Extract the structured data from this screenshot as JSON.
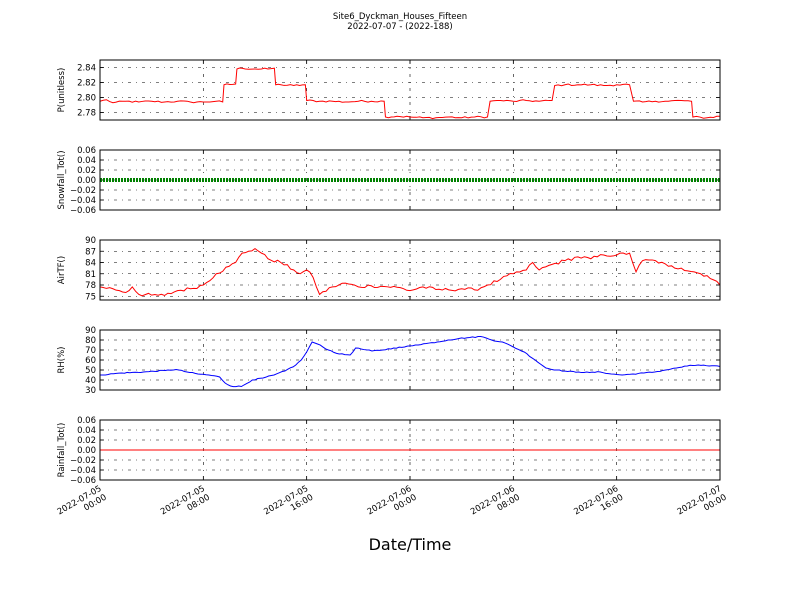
{
  "title": {
    "line1": "Site6_Dyckman_Houses_Fifteen",
    "line2": "2022-07-07 - (2022-188)"
  },
  "chart_data": {
    "type": "line",
    "xlabel": "Date/Time",
    "x_range": [
      "2022-07-05 00:00",
      "2022-07-07 00:00"
    ],
    "x_ticks": [
      {
        "line1": "2022-07-05",
        "line2": "00:00",
        "hours": 0
      },
      {
        "line1": "2022-07-05",
        "line2": "08:00",
        "hours": 8
      },
      {
        "line1": "2022-07-05",
        "line2": "16:00",
        "hours": 16
      },
      {
        "line1": "2022-07-06",
        "line2": "00:00",
        "hours": 24
      },
      {
        "line1": "2022-07-06",
        "line2": "08:00",
        "hours": 32
      },
      {
        "line1": "2022-07-06",
        "line2": "16:00",
        "hours": 40
      },
      {
        "line1": "2022-07-07",
        "line2": "00:00",
        "hours": 48
      }
    ],
    "grid": true,
    "panels": [
      {
        "ylabel": "P(unitless)",
        "color": "#ff0000",
        "ylim": [
          2.77,
          2.85
        ],
        "yticks": [
          "2.78",
          "2.80",
          "2.82",
          "2.84"
        ],
        "ytick_values": [
          2.78,
          2.8,
          2.82,
          2.84
        ],
        "noise": 0.0012,
        "series": [
          [
            0,
            2.795
          ],
          [
            0.5,
            2.797
          ],
          [
            1,
            2.793
          ],
          [
            2,
            2.795
          ],
          [
            3,
            2.794
          ],
          [
            4,
            2.795
          ],
          [
            5,
            2.794
          ],
          [
            6,
            2.795
          ],
          [
            7,
            2.794
          ],
          [
            8,
            2.794
          ],
          [
            9,
            2.795
          ],
          [
            9.5,
            2.794
          ],
          [
            9.6,
            2.817
          ],
          [
            10.5,
            2.818
          ],
          [
            10.6,
            2.838
          ],
          [
            11,
            2.839
          ],
          [
            12,
            2.838
          ],
          [
            13,
            2.838
          ],
          [
            13.5,
            2.839
          ],
          [
            13.6,
            2.817
          ],
          [
            14,
            2.817
          ],
          [
            15,
            2.816
          ],
          [
            15.9,
            2.817
          ],
          [
            16,
            2.796
          ],
          [
            17,
            2.795
          ],
          [
            18,
            2.795
          ],
          [
            19,
            2.794
          ],
          [
            20,
            2.795
          ],
          [
            21,
            2.795
          ],
          [
            22,
            2.795
          ],
          [
            22.1,
            2.774
          ],
          [
            23,
            2.775
          ],
          [
            24,
            2.774
          ],
          [
            25,
            2.773
          ],
          [
            26,
            2.773
          ],
          [
            27,
            2.774
          ],
          [
            28,
            2.773
          ],
          [
            29,
            2.774
          ],
          [
            30,
            2.774
          ],
          [
            30.2,
            2.795
          ],
          [
            31,
            2.796
          ],
          [
            32,
            2.795
          ],
          [
            33,
            2.796
          ],
          [
            34,
            2.795
          ],
          [
            35,
            2.796
          ],
          [
            35.2,
            2.816
          ],
          [
            36,
            2.817
          ],
          [
            37,
            2.817
          ],
          [
            38,
            2.817
          ],
          [
            39,
            2.816
          ],
          [
            40,
            2.817
          ],
          [
            41,
            2.817
          ],
          [
            41.3,
            2.795
          ],
          [
            42,
            2.794
          ],
          [
            43,
            2.795
          ],
          [
            44,
            2.795
          ],
          [
            45,
            2.796
          ],
          [
            45.8,
            2.795
          ],
          [
            45.9,
            2.774
          ],
          [
            47,
            2.773
          ],
          [
            48,
            2.775
          ]
        ]
      },
      {
        "ylabel": "Snowfall_Tot()",
        "color": "#008000",
        "style": "thick-dotted",
        "ylim": [
          -0.06,
          0.06
        ],
        "yticks": [
          "−0.06",
          "−0.04",
          "−0.02",
          "0.00",
          "0.02",
          "0.04",
          "0.06"
        ],
        "ytick_values": [
          -0.06,
          -0.04,
          -0.02,
          0.0,
          0.02,
          0.04,
          0.06
        ],
        "noise": 0,
        "series": [
          [
            0,
            0
          ],
          [
            48,
            0
          ]
        ]
      },
      {
        "ylabel": "AirTF()",
        "color": "#ff0000",
        "ylim": [
          74,
          90
        ],
        "yticks": [
          "75",
          "78",
          "81",
          "84",
          "87",
          "90"
        ],
        "ytick_values": [
          75,
          78,
          81,
          84,
          87,
          90
        ],
        "noise": 0.45,
        "series": [
          [
            0,
            77.5
          ],
          [
            1,
            77
          ],
          [
            1.5,
            76.5
          ],
          [
            2,
            76
          ],
          [
            2.5,
            77.5
          ],
          [
            3,
            75.5
          ],
          [
            4,
            75.3
          ],
          [
            5,
            75.2
          ],
          [
            6,
            76.5
          ],
          [
            7,
            77
          ],
          [
            8,
            78
          ],
          [
            9,
            81
          ],
          [
            10,
            83
          ],
          [
            10.5,
            84
          ],
          [
            11,
            86.5
          ],
          [
            11.5,
            87
          ],
          [
            12,
            87.7
          ],
          [
            12.5,
            86.5
          ],
          [
            13,
            85
          ],
          [
            14,
            84
          ],
          [
            15,
            82
          ],
          [
            15.5,
            81
          ],
          [
            16,
            82
          ],
          [
            16.5,
            80
          ],
          [
            17,
            75.5
          ],
          [
            18,
            77.5
          ],
          [
            19,
            78.5
          ],
          [
            20,
            77.5
          ],
          [
            21,
            77.8
          ],
          [
            22,
            77.6
          ],
          [
            23,
            77.4
          ],
          [
            24,
            76.5
          ],
          [
            25,
            77.5
          ],
          [
            26,
            76.8
          ],
          [
            27,
            76.7
          ],
          [
            28,
            77
          ],
          [
            29,
            76.7
          ],
          [
            30,
            78
          ],
          [
            31,
            79.5
          ],
          [
            32,
            81
          ],
          [
            33,
            82
          ],
          [
            33.5,
            84
          ],
          [
            34,
            82
          ],
          [
            35,
            83.5
          ],
          [
            36,
            84.5
          ],
          [
            37,
            85.5
          ],
          [
            38,
            85
          ],
          [
            39,
            86
          ],
          [
            40,
            86
          ],
          [
            41,
            86.5
          ],
          [
            41.5,
            81.5
          ],
          [
            42,
            84.5
          ],
          [
            43,
            84.5
          ],
          [
            44,
            83
          ],
          [
            45,
            82.5
          ],
          [
            46,
            81.5
          ],
          [
            47,
            80.5
          ],
          [
            48,
            78
          ]
        ]
      },
      {
        "ylabel": "RH(%)",
        "color": "#0000ff",
        "ylim": [
          30,
          90
        ],
        "yticks": [
          "30",
          "40",
          "50",
          "60",
          "70",
          "80",
          "90"
        ],
        "ytick_values": [
          30,
          40,
          50,
          60,
          70,
          80,
          90
        ],
        "noise": 0.5,
        "series": [
          [
            0,
            45
          ],
          [
            2,
            47
          ],
          [
            4,
            48
          ],
          [
            6,
            49.5
          ],
          [
            7,
            50.5
          ],
          [
            8,
            48
          ],
          [
            9,
            46
          ],
          [
            10,
            45
          ],
          [
            11,
            43
          ],
          [
            11.5,
            37
          ],
          [
            12,
            34
          ],
          [
            13,
            33.5
          ],
          [
            14,
            40
          ],
          [
            15,
            42
          ],
          [
            16,
            45
          ],
          [
            17,
            49
          ],
          [
            18,
            55
          ],
          [
            18.5,
            60
          ],
          [
            19,
            68
          ],
          [
            19.5,
            78
          ],
          [
            20,
            76
          ],
          [
            21,
            70
          ],
          [
            22,
            66
          ],
          [
            23,
            65
          ],
          [
            23.5,
            72
          ],
          [
            24,
            71
          ],
          [
            25,
            69
          ],
          [
            26,
            70
          ],
          [
            27,
            72
          ],
          [
            28,
            73
          ],
          [
            29,
            75
          ],
          [
            30,
            76.5
          ],
          [
            31,
            78
          ],
          [
            32,
            80
          ],
          [
            33,
            81.5
          ],
          [
            34,
            82.5
          ],
          [
            35,
            83.5
          ],
          [
            35.5,
            82
          ],
          [
            36,
            80
          ],
          [
            37,
            78
          ],
          [
            38,
            73
          ],
          [
            39,
            68
          ],
          [
            40,
            60
          ],
          [
            41,
            52
          ],
          [
            42,
            50
          ],
          [
            43,
            48.5
          ],
          [
            44,
            48
          ],
          [
            45,
            47.5
          ],
          [
            46,
            48
          ],
          [
            47,
            46
          ],
          [
            48,
            45
          ],
          [
            49,
            46
          ],
          [
            50,
            47
          ],
          [
            51,
            48
          ],
          [
            52,
            50
          ],
          [
            53,
            52
          ],
          [
            54,
            54
          ],
          [
            55,
            55
          ],
          [
            56,
            54
          ],
          [
            57,
            53.5
          ]
        ],
        "x_scale_note": "hours"
      },
      {
        "ylabel": "Rainfall_Tot()",
        "color": "#ff0000",
        "ylim": [
          -0.06,
          0.06
        ],
        "yticks": [
          "−0.06",
          "−0.04",
          "−0.02",
          "0.00",
          "0.02",
          "0.04",
          "0.06"
        ],
        "ytick_values": [
          -0.06,
          -0.04,
          -0.02,
          0.0,
          0.02,
          0.04,
          0.06
        ],
        "noise": 0,
        "series": [
          [
            0,
            0
          ],
          [
            48,
            0
          ]
        ]
      }
    ]
  }
}
